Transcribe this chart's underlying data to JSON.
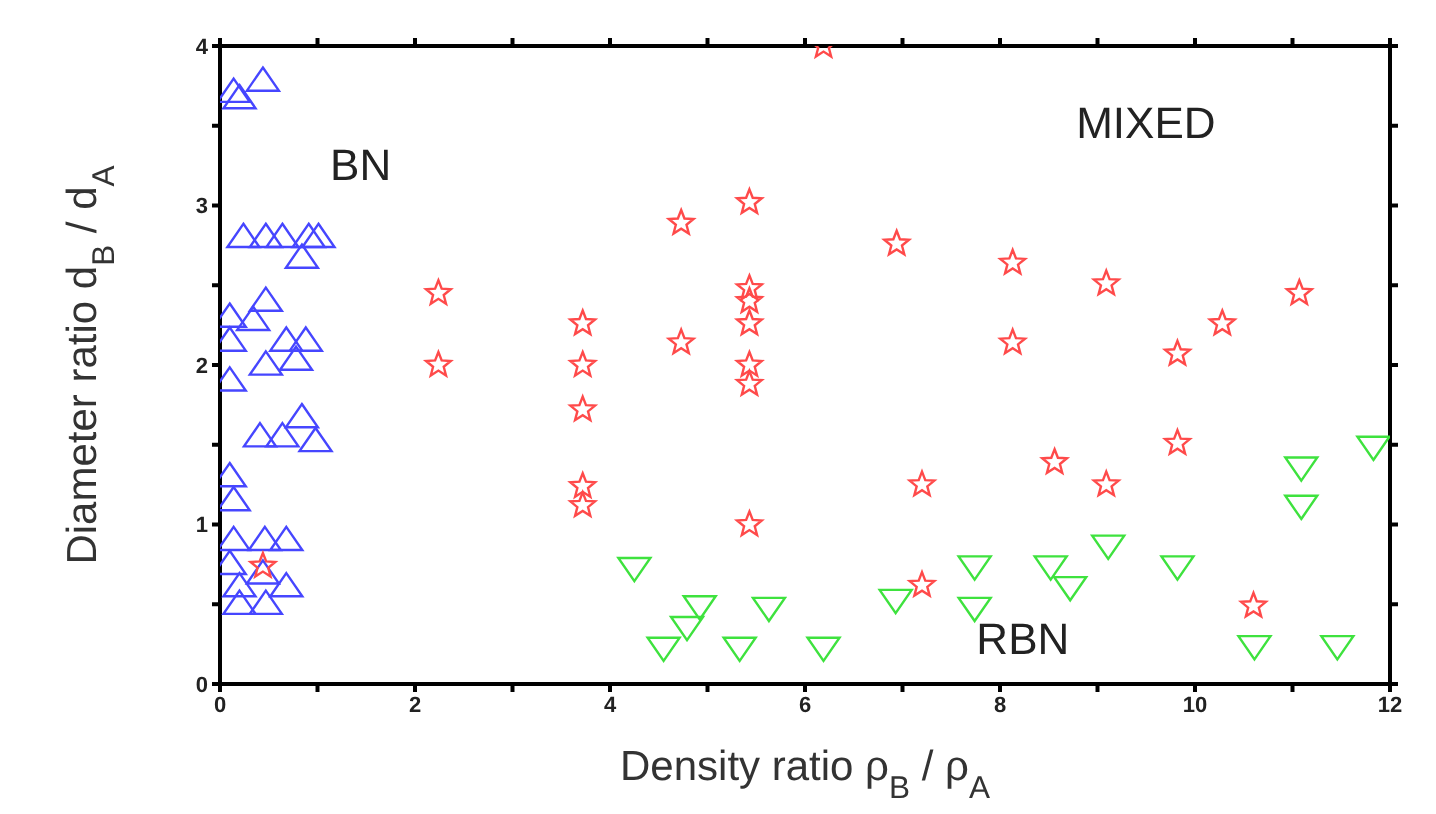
{
  "chart_data": {
    "type": "scatter",
    "xlabel": "Density ratio ρ$_{B}$ / ρ$_{A}$",
    "ylabel": "Diameter ratio d$_{B}$ / d$_{A}$",
    "annotations": [
      "BN",
      "MIXED",
      "RBN"
    ],
    "xlim": [
      0,
      12
    ],
    "ylim": [
      0,
      4
    ],
    "xticks": [
      0,
      {
        "value": 1,
        "label": null
      },
      2,
      {
        "value": 3,
        "label": null
      },
      4,
      {
        "value": 5,
        "label": null
      },
      6,
      {
        "value": 7,
        "label": null
      },
      8,
      {
        "value": 9,
        "label": null
      },
      10,
      {
        "value": 11,
        "label": null
      },
      12
    ],
    "yticks": [
      0,
      {
        "value": 0.5,
        "label": null
      },
      1,
      {
        "value": 1.5,
        "label": null
      },
      2,
      {
        "value": 2.5,
        "label": null
      },
      3,
      {
        "value": 3.5,
        "label": null
      },
      4
    ],
    "legend": false,
    "series": [
      {
        "color": "#4646ff",
        "marker": "triangle",
        "x": [
          0.14,
          0.44,
          0.2,
          0.24,
          0.47,
          0.64,
          0.91,
          1.01,
          0.84,
          0.47,
          0.1,
          0.34,
          0.1,
          0.68,
          0.88,
          0.78,
          0.47,
          0.1,
          0.84,
          0.41,
          0.64,
          0.98,
          0.1,
          0.14,
          0.14,
          0.46,
          0.68,
          0.1,
          0.2,
          0.68,
          0.44,
          0.2,
          0.47
        ],
        "values": [
          3.71,
          3.78,
          3.67,
          2.8,
          2.8,
          2.8,
          2.8,
          2.8,
          2.67,
          2.4,
          2.3,
          2.28,
          2.15,
          2.15,
          2.15,
          2.03,
          2.0,
          1.9,
          1.67,
          1.55,
          1.55,
          1.52,
          1.3,
          1.15,
          0.9,
          0.9,
          0.9,
          0.75,
          0.61,
          0.61,
          0.69,
          0.5,
          0.5
        ]
      },
      {
        "color": "#ff4a4a",
        "marker": "star",
        "x": [
          2.24,
          2.24,
          3.72,
          3.72,
          3.72,
          3.72,
          3.72,
          4.73,
          4.73,
          5.43,
          5.43,
          5.43,
          5.43,
          5.43,
          5.43,
          5.43,
          6.94,
          8.13,
          9.09,
          11.07,
          10.28,
          8.13,
          9.82,
          9.82,
          8.56,
          7.2,
          9.09,
          7.2,
          10.6,
          6.19,
          0.44
        ],
        "values": [
          2.45,
          2.0,
          2.26,
          2.0,
          1.72,
          1.24,
          1.12,
          2.89,
          2.14,
          3.02,
          2.48,
          2.4,
          2.26,
          2.0,
          1.88,
          1.0,
          2.76,
          2.64,
          2.51,
          2.45,
          2.26,
          2.14,
          2.07,
          1.51,
          1.39,
          1.25,
          1.25,
          0.62,
          0.49,
          4.0,
          0.74
        ]
      },
      {
        "color": "#3ee23e",
        "marker": "triangle-down",
        "x": [
          4.25,
          4.92,
          4.79,
          4.55,
          5.33,
          5.63,
          6.19,
          6.93,
          7.74,
          7.74,
          8.52,
          8.72,
          9.11,
          9.82,
          11.09,
          11.09,
          11.83,
          10.61,
          11.46
        ],
        "values": [
          0.73,
          0.49,
          0.36,
          0.23,
          0.23,
          0.48,
          0.23,
          0.53,
          0.74,
          0.48,
          0.74,
          0.61,
          0.87,
          0.74,
          1.36,
          1.12,
          1.49,
          0.24,
          0.24
        ]
      }
    ]
  }
}
